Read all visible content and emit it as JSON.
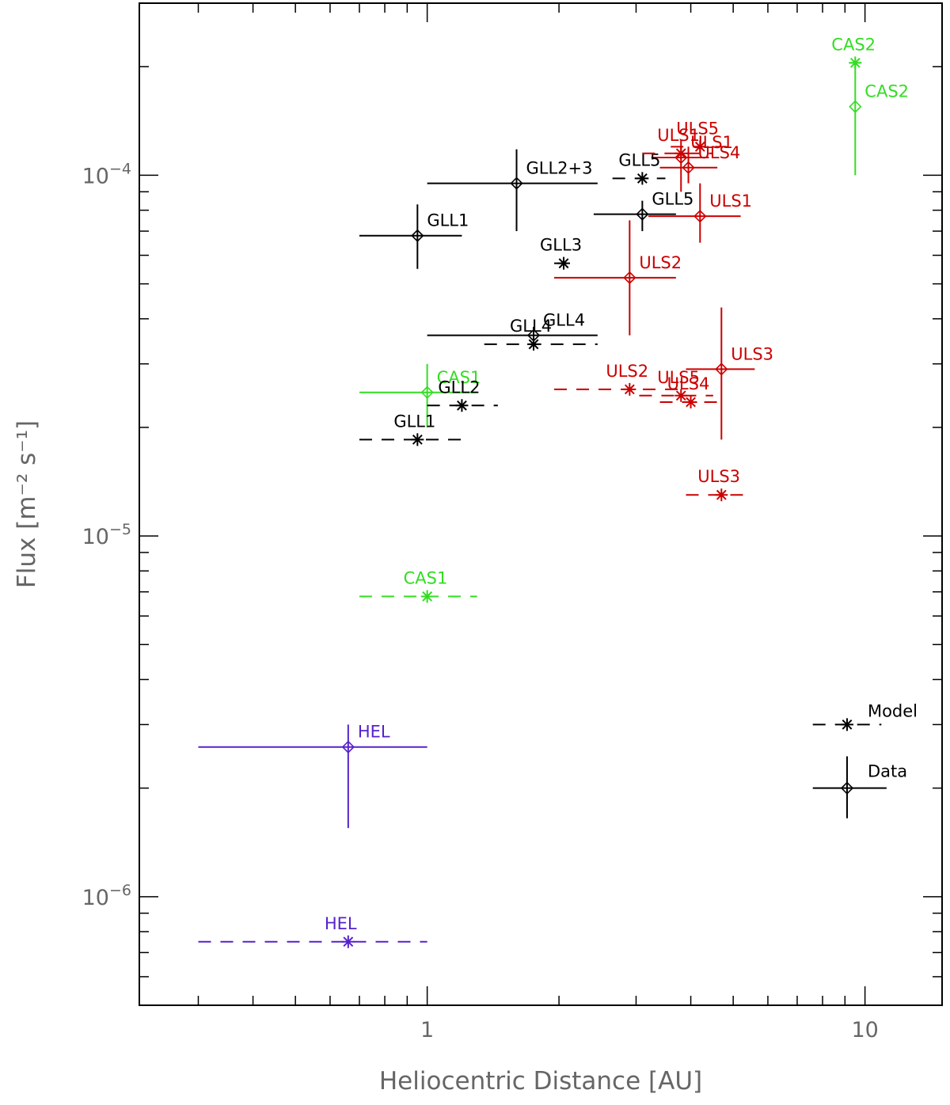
{
  "chart_data": {
    "type": "scatter",
    "title": "",
    "xlabel": "Heliocentric Distance [AU]",
    "ylabel": "Flux [m⁻² s⁻¹]",
    "x_scale": "log",
    "y_scale": "log",
    "xlim": [
      0.22,
      15
    ],
    "ylim": [
      5e-07,
      0.0003
    ],
    "grid": false,
    "x_ticks": [
      {
        "value": 1,
        "label": "1"
      },
      {
        "value": 10,
        "label": "10"
      }
    ],
    "y_ticks": [
      {
        "value": 1e-06,
        "base": "10",
        "exp": "−6"
      },
      {
        "value": 1e-05,
        "base": "10",
        "exp": "−5"
      },
      {
        "value": 0.0001,
        "base": "10",
        "exp": "−4"
      }
    ],
    "colors": {
      "GLL": "#000000",
      "ULS": "#cc0000",
      "CAS": "#33dd22",
      "HEL": "#5522cc"
    },
    "legend": {
      "placement": "bottom-right",
      "model_label": "Model",
      "data_label": "Data",
      "model_x": 9.1,
      "model_y": 3e-06,
      "model_xmin": 7.6,
      "model_xmax": 10.9,
      "data_x": 9.1,
      "data_y": 2e-06,
      "data_xmin": 7.6,
      "data_xmax": 11.2,
      "data_ymin": 1.65e-06,
      "data_ymax": 2.45e-06
    },
    "data_points": [
      {
        "label": "GLL1",
        "group": "GLL",
        "x": 0.95,
        "y": 6.8e-05,
        "xmin": 0.7,
        "xmax": 1.2,
        "ymin": 5.5e-05,
        "ymax": 8.3e-05
      },
      {
        "label": "GLL2+3",
        "group": "GLL",
        "x": 1.6,
        "y": 9.5e-05,
        "xmin": 1.0,
        "xmax": 2.45,
        "ymin": 7e-05,
        "ymax": 0.000118
      },
      {
        "label": "GLL5",
        "group": "GLL",
        "x": 3.1,
        "y": 7.8e-05,
        "xmin": 2.4,
        "xmax": 3.7,
        "ymin": 7e-05,
        "ymax": 8.5e-05
      },
      {
        "label": "GLL4",
        "group": "GLL",
        "x": 1.75,
        "y": 3.6e-05,
        "xmin": 1.0,
        "xmax": 2.45,
        "ymin": 3.45e-05,
        "ymax": 3.8e-05
      },
      {
        "label": "CAS1",
        "group": "CAS",
        "x": 1.0,
        "y": 2.5e-05,
        "xmin": 0.7,
        "xmax": 1.3,
        "ymin": 2e-05,
        "ymax": 3e-05
      },
      {
        "label": "HEL",
        "group": "HEL",
        "x": 0.66,
        "y": 2.6e-06,
        "xmin": 0.3,
        "xmax": 1.0,
        "ymin": 1.55e-06,
        "ymax": 3e-06
      },
      {
        "label": "ULS1",
        "group": "ULS",
        "x": 3.8,
        "y": 0.000112,
        "xmin": 3.25,
        "xmax": 4.4,
        "ymin": 9e-05,
        "ymax": 0.000125
      },
      {
        "label": "ULS4",
        "group": "ULS",
        "x": 3.95,
        "y": 0.000105,
        "xmin": 3.4,
        "xmax": 4.6,
        "ymin": 9.5e-05,
        "ymax": 0.00012
      },
      {
        "label": "ULS1",
        "group": "ULS",
        "x": 4.2,
        "y": 7.7e-05,
        "xmin": 3.2,
        "xmax": 5.2,
        "ymin": 6.5e-05,
        "ymax": 9.5e-05
      },
      {
        "label": "ULS2",
        "group": "ULS",
        "x": 2.9,
        "y": 5.2e-05,
        "xmin": 1.95,
        "xmax": 3.7,
        "ymin": 3.6e-05,
        "ymax": 7.5e-05
      },
      {
        "label": "ULS3",
        "group": "ULS",
        "x": 4.7,
        "y": 2.9e-05,
        "xmin": 3.9,
        "xmax": 5.6,
        "ymin": 1.85e-05,
        "ymax": 4.3e-05
      },
      {
        "label": "CAS2",
        "group": "CAS",
        "x": 9.5,
        "y": 0.000155,
        "xmin": 9.5,
        "xmax": 9.5,
        "ymin": 0.0001,
        "ymax": 0.00021
      }
    ],
    "model_points": [
      {
        "label": "GLL1",
        "group": "GLL",
        "x": 0.95,
        "y": 1.85e-05,
        "xmin": 0.7,
        "xmax": 1.2
      },
      {
        "label": "GLL2",
        "group": "GLL",
        "x": 1.2,
        "y": 2.3e-05,
        "xmin": 1.0,
        "xmax": 1.45
      },
      {
        "label": "GLL3",
        "group": "GLL",
        "x": 2.05,
        "y": 5.7e-05,
        "xmin": 1.95,
        "xmax": 2.15
      },
      {
        "label": "GLL4",
        "group": "GLL",
        "x": 1.75,
        "y": 3.4e-05,
        "xmin": 1.35,
        "xmax": 2.45
      },
      {
        "label": "GLL5",
        "group": "GLL",
        "x": 3.1,
        "y": 9.8e-05,
        "xmin": 2.65,
        "xmax": 3.5
      },
      {
        "label": "ULS1",
        "group": "ULS",
        "x": 3.8,
        "y": 0.000115,
        "xmin": 3.1,
        "xmax": 4.5
      },
      {
        "label": "ULS5",
        "group": "ULS",
        "x": 4.2,
        "y": 0.00012,
        "xmin": 3.6,
        "xmax": 4.8
      },
      {
        "label": "ULS2",
        "group": "ULS",
        "x": 2.9,
        "y": 2.55e-05,
        "xmin": 1.95,
        "xmax": 3.8
      },
      {
        "label": "ULS5",
        "group": "ULS",
        "x": 3.8,
        "y": 2.45e-05,
        "xmin": 3.05,
        "xmax": 4.5
      },
      {
        "label": "ULS4",
        "group": "ULS",
        "x": 4.0,
        "y": 2.35e-05,
        "xmin": 3.4,
        "xmax": 4.8
      },
      {
        "label": "ULS3",
        "group": "ULS",
        "x": 4.7,
        "y": 1.3e-05,
        "xmin": 3.9,
        "xmax": 5.5
      },
      {
        "label": "CAS1",
        "group": "CAS",
        "x": 1.0,
        "y": 6.8e-06,
        "xmin": 0.7,
        "xmax": 1.3
      },
      {
        "label": "CAS2",
        "group": "CAS",
        "x": 9.5,
        "y": 0.000205,
        "xmin": 9.2,
        "xmax": 9.8
      },
      {
        "label": "HEL",
        "group": "HEL",
        "x": 0.66,
        "y": 7.5e-07,
        "xmin": 0.3,
        "xmax": 1.0
      }
    ]
  }
}
